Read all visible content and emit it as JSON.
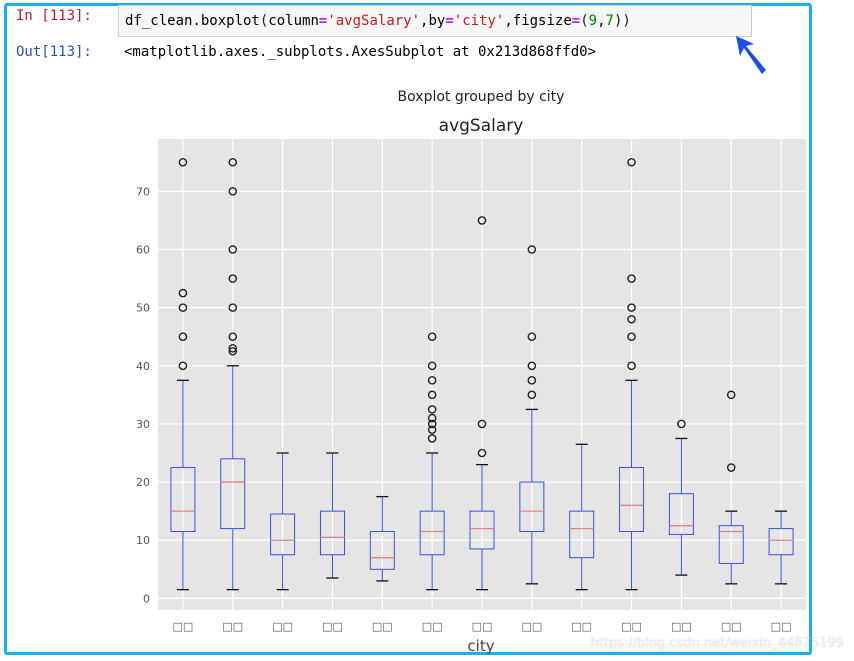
{
  "cell": {
    "in_prompt": "In [113]:",
    "out_prompt": "Out[113]:",
    "code_tokens": [
      {
        "t": "df_clean.boxplot",
        "c": ""
      },
      {
        "t": "(",
        "c": "tk-par"
      },
      {
        "t": "column",
        "c": ""
      },
      {
        "t": "=",
        "c": "tk-kw"
      },
      {
        "t": "'avgSalary'",
        "c": "tk-str"
      },
      {
        "t": ",by",
        "c": ""
      },
      {
        "t": "=",
        "c": "tk-kw"
      },
      {
        "t": "'city'",
        "c": "tk-str"
      },
      {
        "t": ",figsize",
        "c": ""
      },
      {
        "t": "=",
        "c": "tk-kw"
      },
      {
        "t": "(",
        "c": "tk-par"
      },
      {
        "t": "9",
        "c": "tk-num"
      },
      {
        "t": ",",
        "c": ""
      },
      {
        "t": "7",
        "c": "tk-num"
      },
      {
        "t": "))",
        "c": "tk-par"
      }
    ],
    "output_text": "<matplotlib.axes._subplots.AxesSubplot at 0x213d868ffd0>",
    "frame_color": "#1ab0f0",
    "arrow_color": "#1f4fe0"
  },
  "chart_data": {
    "type": "box",
    "suptitle": "Boxplot grouped by city",
    "title": "avgSalary",
    "xlabel": "city",
    "ylabel": "",
    "ylim": [
      -2,
      79
    ],
    "yticks": [
      0,
      10,
      20,
      30,
      40,
      50,
      60,
      70
    ],
    "grid": true,
    "box_color": "#3b52d8",
    "median_color": "#e08585",
    "background": "#e5e5e5",
    "categories": [
      "□□",
      "□□",
      "□□",
      "□□",
      "□□",
      "□□",
      "□□",
      "□□",
      "□□",
      "□□",
      "□□",
      "□□",
      "□□"
    ],
    "boxes": [
      {
        "whislo": 1.5,
        "q1": 11.5,
        "med": 15,
        "q3": 22.5,
        "whishi": 37.5,
        "fliers": [
          40,
          45,
          50,
          52.5,
          75
        ]
      },
      {
        "whislo": 1.5,
        "q1": 12,
        "med": 20,
        "q3": 24,
        "whishi": 40,
        "fliers": [
          42.5,
          43,
          45,
          50,
          55,
          60,
          70,
          75
        ]
      },
      {
        "whislo": 1.5,
        "q1": 7.5,
        "med": 10,
        "q3": 14.5,
        "whishi": 25,
        "fliers": []
      },
      {
        "whislo": 3.5,
        "q1": 7.5,
        "med": 10.5,
        "q3": 15,
        "whishi": 25,
        "fliers": []
      },
      {
        "whislo": 3,
        "q1": 5,
        "med": 7,
        "q3": 11.5,
        "whishi": 17.5,
        "fliers": []
      },
      {
        "whislo": 1.5,
        "q1": 7.5,
        "med": 11.5,
        "q3": 15,
        "whishi": 25,
        "fliers": [
          27.5,
          29,
          30,
          31,
          32.5,
          35,
          37.5,
          40,
          45
        ]
      },
      {
        "whislo": 1.5,
        "q1": 8.5,
        "med": 12,
        "q3": 15,
        "whishi": 23,
        "fliers": [
          25,
          30,
          65
        ]
      },
      {
        "whislo": 2.5,
        "q1": 11.5,
        "med": 15,
        "q3": 20,
        "whishi": 32.5,
        "fliers": [
          35,
          37.5,
          40,
          45,
          60
        ]
      },
      {
        "whislo": 1.5,
        "q1": 7,
        "med": 12,
        "q3": 15,
        "whishi": 26.5,
        "fliers": []
      },
      {
        "whislo": 1.5,
        "q1": 11.5,
        "med": 16,
        "q3": 22.5,
        "whishi": 37.5,
        "fliers": [
          40,
          45,
          48,
          50,
          55,
          75
        ]
      },
      {
        "whislo": 4,
        "q1": 11,
        "med": 12.5,
        "q3": 18,
        "whishi": 27.5,
        "fliers": [
          30
        ]
      },
      {
        "whislo": 2.5,
        "q1": 6,
        "med": 11.5,
        "q3": 12.5,
        "whishi": 15,
        "fliers": [
          22.5,
          35
        ]
      },
      {
        "whislo": 2.5,
        "q1": 7.5,
        "med": 10,
        "q3": 12,
        "whishi": 15,
        "fliers": []
      }
    ]
  },
  "watermark": "https://blog.csdn.net/weixin_44875199"
}
